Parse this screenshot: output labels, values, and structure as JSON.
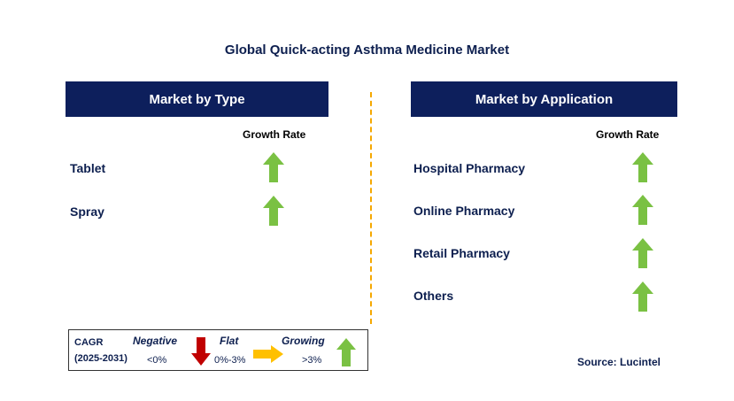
{
  "title": "Global Quick-acting Asthma Medicine Market",
  "left_panel": {
    "header": "Market by Type",
    "growth_rate_label": "Growth Rate",
    "items": [
      {
        "label": "Tablet",
        "trend": "growing"
      },
      {
        "label": "Spray",
        "trend": "growing"
      }
    ]
  },
  "right_panel": {
    "header": "Market by Application",
    "growth_rate_label": "Growth Rate",
    "items": [
      {
        "label": "Hospital Pharmacy",
        "trend": "growing"
      },
      {
        "label": "Online Pharmacy",
        "trend": "growing"
      },
      {
        "label": "Retail Pharmacy",
        "trend": "growing"
      },
      {
        "label": "Others",
        "trend": "growing"
      }
    ]
  },
  "legend": {
    "cagr_label": "CAGR",
    "period": "(2025-2031)",
    "negative_label": "Negative",
    "negative_value": "<0%",
    "flat_label": "Flat",
    "flat_value": "0%-3%",
    "growing_label": "Growing",
    "growing_value": ">3%"
  },
  "source": "Source: Lucintel",
  "colors": {
    "header_bg": "#0d1f5c",
    "up_arrow": "#7ac143",
    "down_arrow": "#c00000",
    "flat_arrow": "#ffc000",
    "divider": "#f5a800"
  }
}
